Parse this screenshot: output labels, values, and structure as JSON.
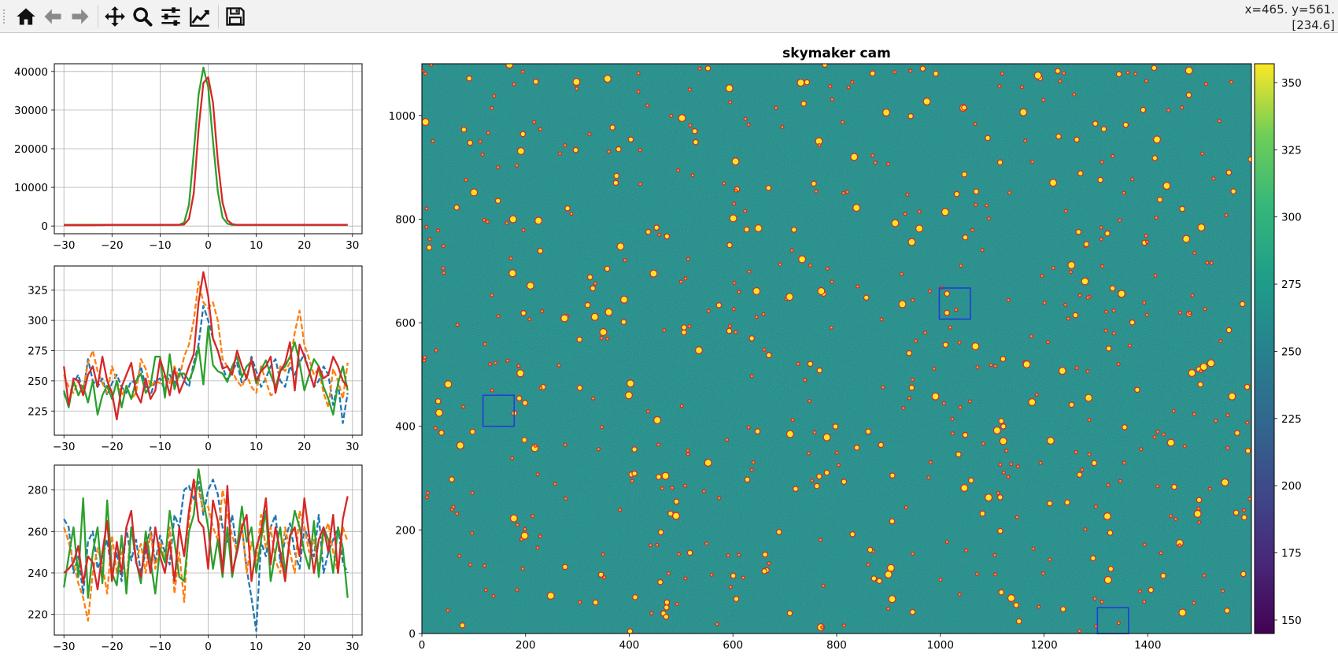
{
  "toolbar": {
    "buttons": [
      {
        "name": "home-button",
        "icon": "home-icon"
      },
      {
        "name": "back-button",
        "icon": "arrow-left-icon"
      },
      {
        "name": "forward-button",
        "icon": "arrow-right-icon"
      },
      {
        "name": "pan-button",
        "icon": "move-icon"
      },
      {
        "name": "zoom-button",
        "icon": "magnifier-icon"
      },
      {
        "name": "configure-subplots-button",
        "icon": "sliders-icon"
      },
      {
        "name": "edit-axis-button",
        "icon": "line-chart-icon"
      },
      {
        "name": "save-button",
        "icon": "floppy-disk-icon"
      }
    ],
    "coord_line1": "x=465. y=561.",
    "coord_line2": "[234.6]"
  },
  "colors": {
    "c0": "#1f77b4",
    "c1": "#ff7f0e",
    "c2": "#2ca02c",
    "c3": "#d62728",
    "bg_teal": "#2a8e8c",
    "roi": "#1f3fd6"
  },
  "chart_data": [
    {
      "type": "line",
      "name": "profile-top",
      "title": "",
      "xlim": [
        -32,
        32
      ],
      "ylim": [
        -2000,
        42000
      ],
      "xticks": [
        -30,
        -20,
        -10,
        0,
        10,
        20,
        30
      ],
      "yticks": [
        0,
        10000,
        20000,
        30000,
        40000
      ],
      "x": [
        -30,
        -28,
        -26,
        -24,
        -22,
        -20,
        -18,
        -16,
        -14,
        -12,
        -10,
        -8,
        -6,
        -5,
        -4,
        -3,
        -2,
        -1,
        0,
        1,
        2,
        3,
        4,
        5,
        6,
        8,
        10,
        14,
        18,
        22,
        26,
        29
      ],
      "series": [
        {
          "name": "c2",
          "values": [
            300,
            300,
            300,
            300,
            300,
            300,
            300,
            300,
            300,
            300,
            300,
            300,
            350,
            900,
            5500,
            19000,
            34000,
            41000,
            36000,
            22000,
            9000,
            2200,
            600,
            300,
            300,
            300,
            300,
            300,
            300,
            300,
            300,
            300
          ]
        },
        {
          "name": "c3",
          "values": [
            200,
            200,
            200,
            200,
            250,
            300,
            300,
            300,
            300,
            300,
            300,
            300,
            300,
            400,
            1800,
            8500,
            25000,
            37000,
            38500,
            32000,
            17000,
            6000,
            1500,
            500,
            300,
            300,
            300,
            300,
            300,
            300,
            300,
            300
          ]
        }
      ]
    },
    {
      "type": "line",
      "name": "profile-middle",
      "title": "",
      "xlim": [
        -32,
        32
      ],
      "ylim": [
        205,
        345
      ],
      "xticks": [
        -30,
        -20,
        -10,
        0,
        10,
        20,
        30
      ],
      "yticks": [
        225,
        250,
        275,
        300,
        325
      ],
      "x": [
        -30,
        -29,
        -28,
        -27,
        -26,
        -25,
        -24,
        -23,
        -22,
        -21,
        -20,
        -19,
        -18,
        -17,
        -16,
        -15,
        -14,
        -13,
        -12,
        -11,
        -10,
        -9,
        -8,
        -7,
        -6,
        -5,
        -4,
        -3,
        -2,
        -1,
        0,
        1,
        2,
        3,
        4,
        5,
        6,
        7,
        8,
        9,
        10,
        11,
        12,
        13,
        14,
        15,
        16,
        17,
        18,
        19,
        20,
        21,
        22,
        23,
        24,
        25,
        26,
        27,
        28,
        29
      ],
      "series": [
        {
          "name": "c0",
          "dashed": true,
          "values": [
            240,
            230,
            248,
            255,
            240,
            268,
            250,
            245,
            252,
            238,
            248,
            255,
            245,
            240,
            250,
            248,
            262,
            245,
            238,
            250,
            252,
            242,
            255,
            248,
            260,
            250,
            245,
            265,
            280,
            312,
            300,
            285,
            275,
            262,
            250,
            258,
            265,
            248,
            252,
            270,
            258,
            245,
            252,
            262,
            268,
            250,
            245,
            262,
            255,
            265,
            272,
            258,
            245,
            250,
            262,
            255,
            230,
            248,
            215,
            240
          ]
        },
        {
          "name": "c1",
          "dashed": true,
          "values": [
            255,
            245,
            240,
            250,
            242,
            265,
            275,
            258,
            248,
            240,
            262,
            250,
            238,
            245,
            235,
            240,
            268,
            260,
            245,
            250,
            248,
            255,
            248,
            262,
            252,
            270,
            280,
            300,
            332,
            315,
            310,
            315,
            300,
            268,
            262,
            258,
            250,
            245,
            255,
            245,
            240,
            262,
            250,
            238,
            240,
            262,
            258,
            265,
            290,
            308,
            280,
            268,
            255,
            260,
            240,
            228,
            260,
            250,
            235,
            265
          ]
        },
        {
          "name": "c2",
          "dashed": false,
          "values": [
            242,
            228,
            250,
            238,
            246,
            232,
            250,
            222,
            238,
            246,
            235,
            250,
            228,
            246,
            235,
            250,
            256,
            240,
            246,
            270,
            270,
            236,
            272,
            243,
            256,
            256,
            250,
            260,
            278,
            247,
            295,
            263,
            258,
            256,
            249,
            262,
            270,
            253,
            262,
            266,
            248,
            259,
            267,
            255,
            245,
            258,
            262,
            270,
            282,
            265,
            242,
            255,
            268,
            262,
            245,
            235,
            222,
            248,
            262,
            242
          ]
        },
        {
          "name": "c3",
          "dashed": false,
          "values": [
            262,
            230,
            252,
            250,
            238,
            255,
            262,
            245,
            270,
            250,
            240,
            218,
            245,
            255,
            265,
            240,
            232,
            252,
            235,
            242,
            268,
            255,
            238,
            260,
            240,
            250,
            262,
            272,
            315,
            340,
            320,
            285,
            275,
            260,
            262,
            255,
            275,
            262,
            252,
            268,
            250,
            258,
            262,
            270,
            240,
            258,
            265,
            282,
            242,
            280,
            270,
            258,
            245,
            262,
            252,
            255,
            270,
            262,
            250,
            245
          ]
        }
      ]
    },
    {
      "type": "line",
      "name": "profile-bottom",
      "title": "",
      "xlim": [
        -32,
        32
      ],
      "ylim": [
        210,
        292
      ],
      "xticks": [
        -30,
        -20,
        -10,
        0,
        10,
        20,
        30
      ],
      "yticks": [
        220,
        240,
        260,
        280
      ],
      "x": [
        -30,
        -29,
        -28,
        -27,
        -26,
        -25,
        -24,
        -23,
        -22,
        -21,
        -20,
        -19,
        -18,
        -17,
        -16,
        -15,
        -14,
        -13,
        -12,
        -11,
        -10,
        -9,
        -8,
        -7,
        -6,
        -5,
        -4,
        -3,
        -2,
        -1,
        0,
        1,
        2,
        3,
        4,
        5,
        6,
        7,
        8,
        9,
        10,
        11,
        12,
        13,
        14,
        15,
        16,
        17,
        18,
        19,
        20,
        21,
        22,
        23,
        24,
        25,
        26,
        27,
        28,
        29
      ],
      "series": [
        {
          "name": "c0",
          "dashed": true,
          "values": [
            266,
            262,
            240,
            248,
            230,
            255,
            260,
            242,
            248,
            256,
            240,
            250,
            236,
            262,
            246,
            256,
            240,
            250,
            262,
            245,
            258,
            250,
            244,
            268,
            262,
            280,
            282,
            275,
            284,
            268,
            280,
            285,
            278,
            262,
            255,
            268,
            250,
            262,
            242,
            228,
            212,
            255,
            248,
            262,
            268,
            245,
            256,
            264,
            250,
            242,
            262,
            255,
            248,
            268,
            240,
            250,
            256,
            262,
            245,
            240
          ]
        },
        {
          "name": "c1",
          "dashed": true,
          "values": [
            262,
            255,
            245,
            235,
            228,
            217,
            240,
            252,
            244,
            230,
            258,
            240,
            250,
            236,
            262,
            246,
            254,
            240,
            260,
            242,
            255,
            246,
            262,
            230,
            250,
            226,
            265,
            285,
            280,
            270,
            272,
            262,
            256,
            280,
            268,
            258,
            250,
            264,
            240,
            255,
            246,
            268,
            252,
            262,
            246,
            240,
            262,
            250,
            240,
            270,
            262,
            250,
            256,
            242,
            258,
            264,
            250,
            240,
            262,
            255
          ]
        },
        {
          "name": "c2",
          "dashed": false,
          "values": [
            233,
            248,
            262,
            238,
            276,
            228,
            250,
            262,
            235,
            275,
            240,
            234,
            258,
            230,
            262,
            246,
            235,
            260,
            246,
            230,
            252,
            245,
            270,
            255,
            238,
            236,
            260,
            268,
            290,
            275,
            262,
            242,
            256,
            238,
            262,
            238,
            252,
            272,
            255,
            262,
            240,
            256,
            270,
            236,
            250,
            262,
            240,
            256,
            270,
            262,
            250,
            242,
            265,
            238,
            262,
            256,
            240,
            262,
            252,
            228
          ]
        },
        {
          "name": "c3",
          "dashed": false,
          "values": [
            240,
            242,
            245,
            253,
            235,
            248,
            245,
            232,
            250,
            265,
            236,
            255,
            240,
            262,
            270,
            245,
            238,
            255,
            240,
            262,
            248,
            240,
            255,
            236,
            262,
            248,
            270,
            285,
            265,
            262,
            242,
            275,
            265,
            240,
            282,
            240,
            250,
            262,
            268,
            236,
            252,
            260,
            276,
            244,
            262,
            250,
            236,
            258,
            262,
            248,
            276,
            258,
            240,
            256,
            262,
            250,
            268,
            240,
            266,
            277
          ]
        }
      ]
    },
    {
      "type": "heatmap",
      "name": "skymaker-image",
      "title": "skymaker cam",
      "xlim": [
        0,
        1600
      ],
      "ylim": [
        0,
        1100
      ],
      "xticks": [
        0,
        200,
        400,
        600,
        800,
        1000,
        1200,
        1400
      ],
      "yticks": [
        0,
        200,
        400,
        600,
        800,
        1000
      ],
      "background_level": 255,
      "roi_boxes": [
        {
          "x0": 118,
          "x1": 178,
          "y0": 400,
          "y1": 460
        },
        {
          "x0": 998,
          "x1": 1058,
          "y0": 607,
          "y1": 667
        },
        {
          "x0": 1303,
          "x1": 1363,
          "y0": 0,
          "y1": 50
        }
      ],
      "colorbar": {
        "cmap": "viridis",
        "range": [
          145,
          357
        ],
        "ticks": [
          150,
          175,
          200,
          225,
          250,
          275,
          300,
          325,
          350
        ]
      }
    }
  ]
}
